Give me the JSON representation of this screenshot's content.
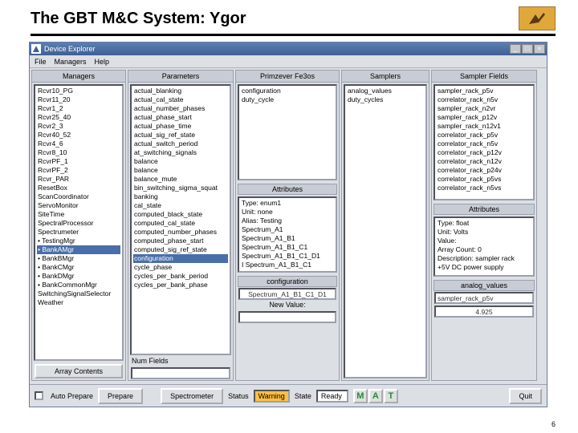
{
  "slide": {
    "title": "The GBT M&C System: Ygor",
    "page_number": "6"
  },
  "window": {
    "title": "Device Explorer"
  },
  "menu": {
    "file": "File",
    "managers": "Managers",
    "help": "Help"
  },
  "cols": {
    "managers": "Managers",
    "parameters": "Parameters",
    "primzever": "Primzever Fe3os",
    "samplers": "Samplers",
    "sampler_fields": "Sampler Fields",
    "attributes": "Attributes"
  },
  "managers_list": [
    "Rcvr10_PG",
    "Rcvr11_20",
    "Rcvr1_2",
    "Rcvr25_40",
    "Rcvr2_3",
    "Rcvr40_52",
    "Rcvr4_6",
    "Rcvr8_10",
    "RcvrPF_1",
    "RcvrPF_2",
    "Rcvr_PAR",
    "ResetBox",
    "ScanCoordinator",
    "ServoMonitor",
    "SiteTime",
    "SpectralProcessor",
    "Spectrumeter",
    "• TestingMgr",
    "• BankAMgr",
    "• BankBMgr",
    "• BankCMgr",
    "• BankDMgr",
    "• BankCommonMgr",
    "SwitchingSignalSelector",
    "Weather"
  ],
  "managers_selected_index": 18,
  "parameters_list": [
    "actual_blanking",
    "actual_cal_state",
    "actual_number_phases",
    "actual_phase_start",
    "actual_phase_time",
    "actual_sig_ref_state",
    "actual_switch_period",
    "at_switching_signals",
    "balance",
    "balance",
    "balance_mute",
    "bin_switching_sigma_squat",
    "banking",
    "cal_state",
    "computed_black_state",
    "computed_cal_state",
    "computed_number_phases",
    "computed_phase_start",
    "computed_sig_ref_state",
    "configuration",
    "cycle_phase",
    "cycles_per_bank_period",
    "cycles_per_bank_phase"
  ],
  "parameters_selected_index": 19,
  "primzever_list": [
    "configuration",
    "duty_cycle"
  ],
  "samplers_list": [
    "analog_values",
    "duty_cycles"
  ],
  "sampler_fields_list": [
    "sampler_rack_p5v",
    "correlator_rack_n5v",
    "sampler_rack_n2vr",
    "sampler_rack_p12v",
    "sampler_rack_n12v1",
    "correlator_rack_p5v",
    "correlator_rack_n5v",
    "correlator_rack_p12v",
    "correlator_rack_n12v",
    "correlator_rack_p24v",
    "correlator_rack_p5vs",
    "correlator_rack_n5vs"
  ],
  "attributes_box": [
    "Type: enum1",
    "Unit: none",
    "Alias: Testing",
    "Spectrum_A1",
    "Spectrum_A1_B1",
    "Spectrum_A1_B1_C1",
    "Spectrum_A1_B1_C1_D1",
    "I Spectrum_A1_B1_C1"
  ],
  "attributes_right": [
    "Type: float",
    "Unit: Volts",
    "Value:",
    "Array Count: 0",
    "Description: sampler rack",
    "+5V DC power supply"
  ],
  "labels": {
    "array_contents": "Array Contents",
    "num_fields": "Num Fields",
    "new_value": "New Value:",
    "configuration": "configuration",
    "auto_prepare": "Auto Prepare",
    "prepare": "Prepare",
    "spectrometer": "Spectrometer",
    "status": "Status",
    "state": "State",
    "quit": "Quit",
    "analog_values": "analog_values",
    "sampler_rack_p5v": "sampler_rack_p5v"
  },
  "status": {
    "status_value": "Warning",
    "state_value": "Ready",
    "mat": [
      "M",
      "A",
      "T"
    ]
  },
  "values": {
    "config_value": "Spectrum_A1_B1_C1_D1",
    "sampler_value": "4.925"
  },
  "colors": {
    "titlebar": "#4a6ea8",
    "panel": "#dcdfe4",
    "warning_bg": "#ffc040",
    "mat_green": "#2a8a2a"
  }
}
